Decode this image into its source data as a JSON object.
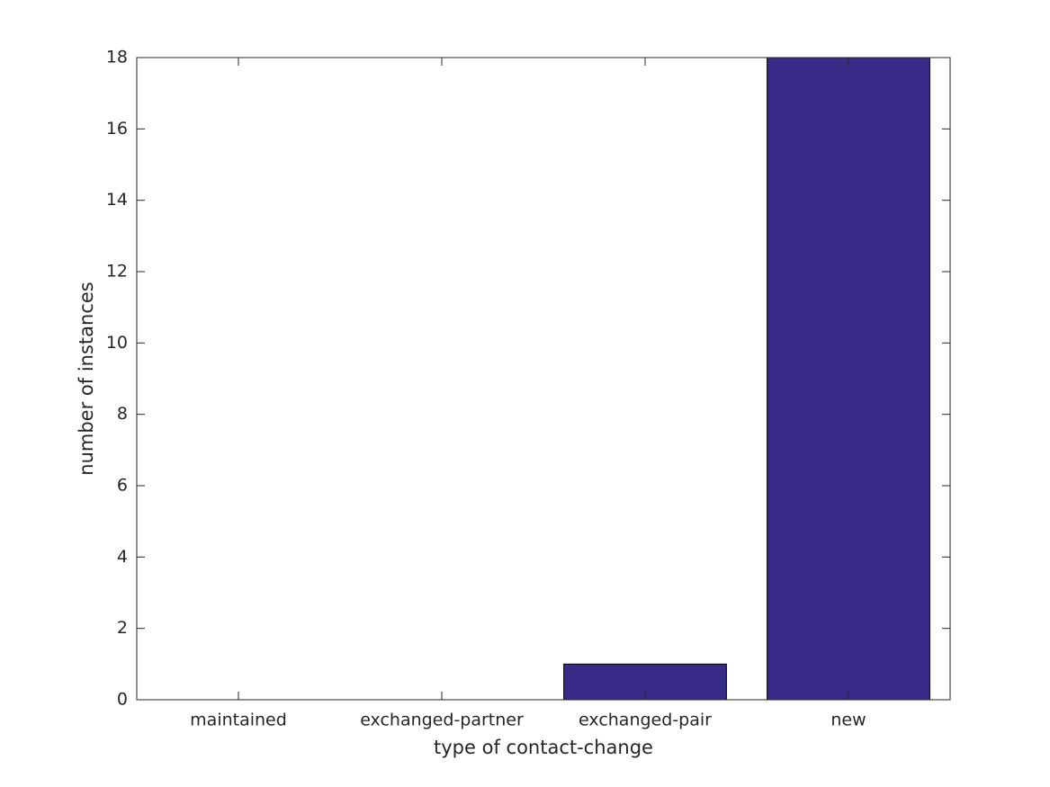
{
  "chart_data": {
    "type": "bar",
    "xlabel": "type of contact-change",
    "ylabel": "number of instances",
    "categories": [
      "maintained",
      "exchanged-partner",
      "exchanged-pair",
      "new"
    ],
    "values": [
      0,
      0,
      1,
      18
    ],
    "color": "#372b87",
    "ylim": [
      0,
      18
    ],
    "yticks": [
      0,
      2,
      4,
      6,
      8,
      10,
      12,
      14,
      16,
      18
    ],
    "grid": false
  }
}
